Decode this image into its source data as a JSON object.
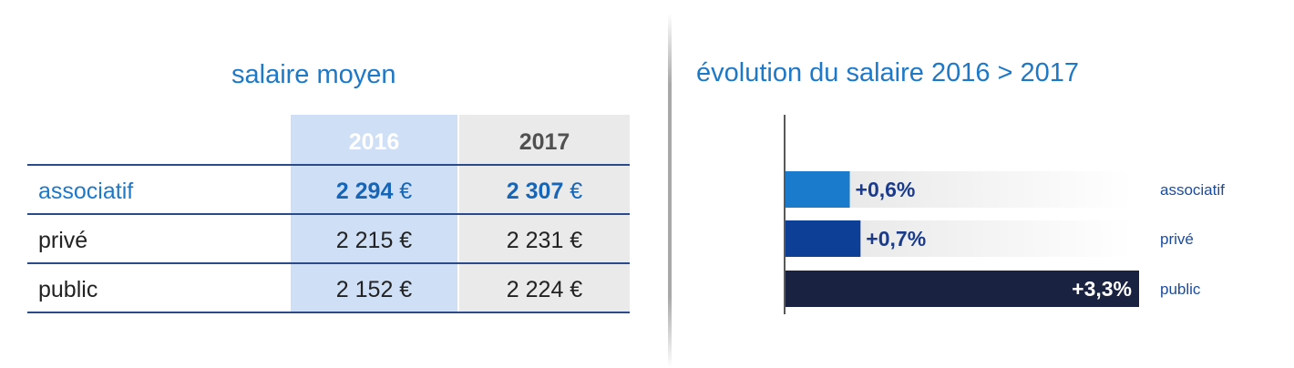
{
  "table": {
    "title": "salaire moyen",
    "columns": [
      "2016",
      "2017"
    ],
    "rows": [
      {
        "label": "associatif",
        "v2016": "2 294",
        "v2017": "2 307",
        "currency": "€"
      },
      {
        "label": "privé",
        "v2016": "2 215",
        "v2017": "2 231",
        "currency": "€"
      },
      {
        "label": "public",
        "v2016": "2 152",
        "v2017": "2 224",
        "currency": "€"
      }
    ]
  },
  "chart_data": {
    "type": "bar",
    "title": "évolution du salaire 2016 > 2017",
    "orientation": "horizontal",
    "categories": [
      "associatif",
      "privé",
      "public"
    ],
    "values": [
      0.6,
      0.7,
      3.3
    ],
    "labels": [
      "+0,6%",
      "+0,7%",
      "+3,3%"
    ],
    "unit": "%",
    "xlim": [
      0,
      3.3
    ],
    "colors": [
      "#1a7acb",
      "#0e3f96",
      "#192241"
    ],
    "track_color_start": "#e4e4e4",
    "grid": false,
    "legend": "none"
  }
}
